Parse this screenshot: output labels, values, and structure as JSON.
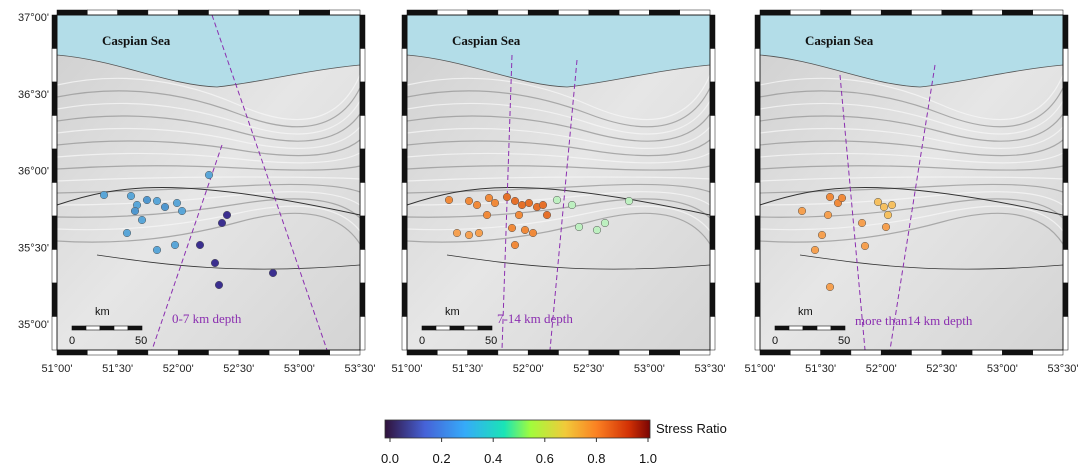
{
  "panels": [
    {
      "sea_label": "Caspian Sea",
      "depth_label": "0-7 km depth",
      "scale_unit": "km",
      "scale_ticks": [
        "0",
        "50"
      ]
    },
    {
      "sea_label": "Caspian Sea",
      "depth_label": "7-14 km depth",
      "scale_unit": "km",
      "scale_ticks": [
        "0",
        "50"
      ]
    },
    {
      "sea_label": "Caspian Sea",
      "depth_label": "more than14 km depth",
      "scale_unit": "km",
      "scale_ticks": [
        "0",
        "50"
      ]
    }
  ],
  "lon_labels": [
    "51°00'",
    "51°30'",
    "52°00'",
    "52°30'",
    "53°00'",
    "53°30'"
  ],
  "lat_labels": [
    "37°00'",
    "36°30'",
    "36°00'",
    "35°30'",
    "35°00'"
  ],
  "colorbar": {
    "label": "Stress Ratio",
    "ticks": [
      "0.0",
      "0.2",
      "0.4",
      "0.6",
      "0.8",
      "1.0"
    ]
  }
}
